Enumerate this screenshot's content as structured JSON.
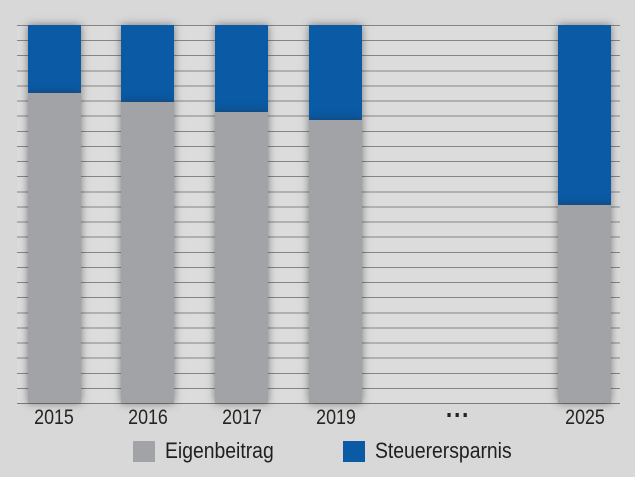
{
  "chart_data": {
    "type": "bar",
    "stacked": true,
    "title": "",
    "xlabel": "",
    "ylabel": "",
    "ylim": [
      0,
      100
    ],
    "grid": "horizontal",
    "legend_position": "bottom",
    "categories": [
      "2015",
      "2016",
      "2017",
      "2019",
      "...",
      "2025"
    ],
    "series": [
      {
        "name": "Eigenbeitrag",
        "color": "#a2a3a7",
        "values": [
          82,
          79.5,
          77,
          75,
          null,
          52.5
        ]
      },
      {
        "name": "Steuerersparnis",
        "color": "#0a5aa5",
        "values": [
          18,
          20.5,
          23,
          25,
          null,
          47.5
        ]
      }
    ]
  },
  "x_axis": {
    "labels": [
      "2015",
      "2016",
      "2017",
      "2019",
      "...",
      "2025"
    ]
  },
  "legend": {
    "items": [
      {
        "label": "Eigenbeitrag",
        "color": "#a2a3a7"
      },
      {
        "label": "Steuerersparnis",
        "color": "#0a5aa5"
      }
    ]
  },
  "colors": {
    "gridline": "#858585",
    "plot_background": "#dcdcdc",
    "page_background": "#d8d8d8",
    "text": "#242424"
  }
}
